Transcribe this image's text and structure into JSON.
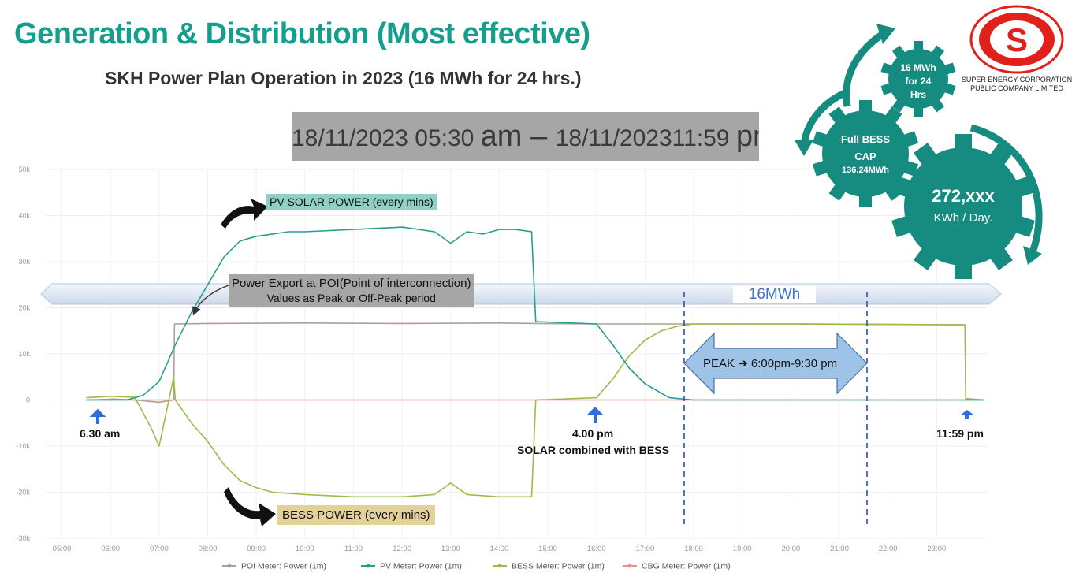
{
  "header": {
    "title": "Generation & Distribution (Most effective)",
    "subtitle": "SKH Power Plan Operation in 2023  (16 MWh for 24 hrs.)",
    "date_range": {
      "start_date": "18/11/2023  05:30 ",
      "start_ampm": "am",
      "dash": " – ",
      "end_date": "18/11/202311:59 ",
      "end_ampm": "pm"
    }
  },
  "logo": {
    "line1": "SUPER ENERGY CORPORATION",
    "line2": "PUBLIC COMPANY LIMITED",
    "letter": "S",
    "color": "#e0201b"
  },
  "gears": {
    "small": {
      "l1": "16 MWh",
      "l2": "for 24",
      "l3": "Hrs"
    },
    "medium": {
      "l1": "Full BESS",
      "l2": "CAP",
      "l3": "136.24MWh"
    },
    "large": {
      "l1": "272,xxx",
      "l2": "KWh / Day."
    },
    "color": "#168b80"
  },
  "annotations": {
    "pv_label": "PV SOLAR POWER (every mins)",
    "poi_label1": "Power Export at POI(Point of interconnection)",
    "poi_label2": "Values as Peak or Off-Peak period",
    "bess_label": "BESS POWER (every mins)",
    "band_label": "16MWh",
    "peak_label": "PEAK ➔ 6:00pm-9:30 pm",
    "mark_630": "6.30 am",
    "mark_400": "4.00 pm",
    "mark_400_sub": "SOLAR combined with BESS",
    "mark_1159": "11:59 pm"
  },
  "chart_data": {
    "type": "line",
    "title": "",
    "x_ticks": [
      "05:00",
      "06:00",
      "07:00",
      "08:00",
      "09:00",
      "10:00",
      "11:00",
      "12:00",
      "13:00",
      "14:00",
      "15:00",
      "16:00",
      "17:00",
      "18:00",
      "19:00",
      "20:00",
      "21:00",
      "22:00",
      "23:00"
    ],
    "y_ticks": [
      "50k",
      "40k",
      "30k",
      "20k",
      "10k",
      "0",
      "-10k",
      "-20k",
      "-30k"
    ],
    "ylim": [
      -30000,
      50000
    ],
    "grid": true,
    "legend_position": "bottom",
    "series": [
      {
        "name": "POI Meter: Power (1m)",
        "color": "#b09e99",
        "x": [
          "05:30",
          "06:05",
          "06:30",
          "07:00",
          "07:18",
          "07:19",
          "08:00",
          "10:00",
          "12:00",
          "14:00",
          "14:45",
          "16:00",
          "18:00",
          "20:00",
          "22:00",
          "23:35",
          "23:36",
          "23:59"
        ],
        "y": [
          0,
          200,
          0,
          -500,
          0,
          16500,
          16600,
          16700,
          16600,
          16700,
          16600,
          16500,
          16500,
          16500,
          16400,
          16300,
          300,
          0
        ]
      },
      {
        "name": "PV Meter: Power (1m)",
        "color": "#2a9d8f",
        "x": [
          "05:30",
          "06:20",
          "06:40",
          "07:00",
          "07:20",
          "07:40",
          "08:00",
          "08:20",
          "08:40",
          "09:00",
          "09:20",
          "09:40",
          "10:00",
          "11:00",
          "12:00",
          "12:40",
          "13:00",
          "13:20",
          "13:40",
          "14:00",
          "14:20",
          "14:40",
          "14:45",
          "16:00",
          "16:20",
          "16:40",
          "17:00",
          "17:30",
          "18:00",
          "23:59"
        ],
        "y": [
          0,
          0,
          1000,
          4000,
          12000,
          19000,
          25000,
          31000,
          34500,
          35500,
          36000,
          36500,
          36500,
          37000,
          37500,
          36500,
          34000,
          36500,
          36000,
          37000,
          37000,
          36500,
          17000,
          16500,
          12000,
          7000,
          3500,
          500,
          0,
          0
        ]
      },
      {
        "name": "BESS Meter: Power (1m)",
        "color": "#9dbb4a",
        "x": [
          "05:30",
          "06:00",
          "06:30",
          "06:50",
          "07:00",
          "07:18",
          "07:20",
          "07:40",
          "08:00",
          "08:20",
          "08:40",
          "09:00",
          "09:20",
          "10:00",
          "11:00",
          "12:00",
          "12:40",
          "13:00",
          "13:20",
          "14:00",
          "14:40",
          "14:45",
          "16:00",
          "16:20",
          "16:40",
          "17:00",
          "17:20",
          "17:40",
          "18:00",
          "20:00",
          "22:00",
          "23:35",
          "23:36",
          "23:59"
        ],
        "y": [
          500,
          800,
          600,
          -6000,
          -10000,
          5000,
          0,
          -5000,
          -9000,
          -14000,
          -17500,
          -19000,
          -20000,
          -20500,
          -21000,
          -21000,
          -20500,
          -18000,
          -20500,
          -21000,
          -21000,
          0,
          500,
          4500,
          9500,
          13000,
          15000,
          16000,
          16500,
          16500,
          16400,
          16300,
          0,
          0
        ]
      },
      {
        "name": "CBG Meter: Power (1m)",
        "color": "#e8908d",
        "x": [
          "05:30",
          "23:59"
        ],
        "y": [
          0,
          0
        ]
      }
    ]
  }
}
